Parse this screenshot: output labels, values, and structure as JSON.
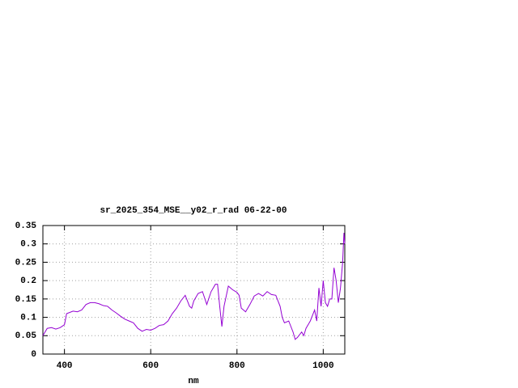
{
  "chart_data": {
    "type": "line",
    "title": "sr_2025_354_MSE__y02_r_rad 06-22-00",
    "x_label": "nm",
    "xlim": [
      350,
      1050
    ],
    "xticks": [
      400,
      600,
      800,
      1000
    ],
    "ylim": [
      0,
      0.35
    ],
    "yticks": [
      0,
      0.05,
      0.1,
      0.15,
      0.2,
      0.25,
      0.3,
      0.35
    ],
    "grid": true,
    "x": [
      350,
      360,
      370,
      380,
      390,
      400,
      405,
      420,
      430,
      440,
      450,
      460,
      470,
      480,
      490,
      500,
      510,
      520,
      530,
      540,
      550,
      560,
      570,
      580,
      590,
      600,
      610,
      620,
      630,
      640,
      650,
      660,
      670,
      680,
      690,
      695,
      700,
      710,
      720,
      730,
      740,
      750,
      755,
      760,
      765,
      770,
      780,
      790,
      800,
      805,
      810,
      820,
      830,
      840,
      850,
      860,
      870,
      880,
      890,
      900,
      905,
      910,
      920,
      930,
      935,
      940,
      950,
      955,
      960,
      970,
      980,
      985,
      990,
      995,
      1000,
      1005,
      1010,
      1015,
      1020,
      1025,
      1030,
      1035,
      1040,
      1045,
      1048,
      1050
    ],
    "series": [
      {
        "color": "#9400d3",
        "values": [
          0.05,
          0.07,
          0.072,
          0.068,
          0.072,
          0.08,
          0.11,
          0.117,
          0.115,
          0.12,
          0.135,
          0.14,
          0.14,
          0.137,
          0.132,
          0.13,
          0.12,
          0.112,
          0.103,
          0.095,
          0.09,
          0.085,
          0.07,
          0.062,
          0.067,
          0.065,
          0.07,
          0.078,
          0.08,
          0.09,
          0.11,
          0.125,
          0.145,
          0.16,
          0.13,
          0.125,
          0.145,
          0.165,
          0.17,
          0.135,
          0.17,
          0.19,
          0.19,
          0.13,
          0.075,
          0.13,
          0.185,
          0.175,
          0.168,
          0.16,
          0.125,
          0.115,
          0.135,
          0.158,
          0.165,
          0.158,
          0.17,
          0.162,
          0.16,
          0.13,
          0.1,
          0.085,
          0.09,
          0.06,
          0.04,
          0.045,
          0.06,
          0.05,
          0.07,
          0.09,
          0.12,
          0.09,
          0.18,
          0.13,
          0.2,
          0.14,
          0.13,
          0.15,
          0.15,
          0.235,
          0.2,
          0.14,
          0.18,
          0.25,
          0.33,
          0.3
        ]
      }
    ]
  }
}
